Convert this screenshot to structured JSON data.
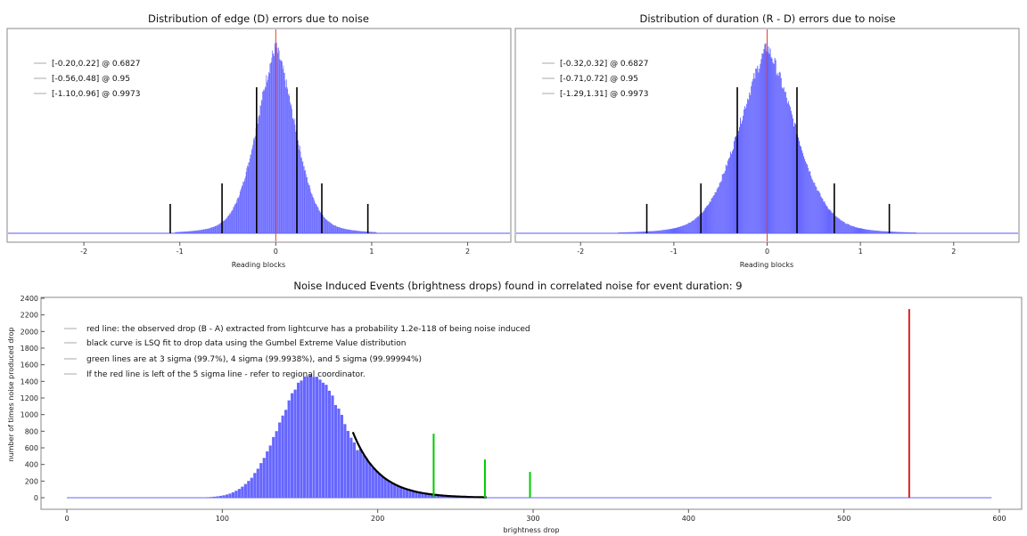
{
  "chart_data": [
    {
      "type": "bar",
      "title": "Distribution of edge (D) errors due to noise",
      "xlabel": "Reading blocks",
      "ylabel": "",
      "xlim": [
        -2.8,
        2.45
      ],
      "x_ticks": [
        -2,
        -1,
        0,
        1,
        2
      ],
      "y_ticks_shown": false,
      "distribution": {
        "shape": "gaussian",
        "center": 0.0,
        "sigma": 0.21,
        "tail_scale": 0.26
      },
      "vertical_markers": [
        {
          "x": 0.0,
          "color": "#e04040",
          "role": "observed zero"
        },
        {
          "x": -0.2,
          "level": 1
        },
        {
          "x": 0.22,
          "level": 1
        },
        {
          "x": -0.56,
          "level": 2
        },
        {
          "x": 0.48,
          "level": 2
        },
        {
          "x": -1.1,
          "level": 3
        },
        {
          "x": 0.96,
          "level": 3
        }
      ],
      "legend": [
        "[-0.20,0.22] @ 0.6827",
        "[-0.56,0.48] @ 0.95",
        "[-1.10,0.96] @ 0.9973"
      ],
      "legend_position": "top-left",
      "series_color": "#6666ff"
    },
    {
      "type": "bar",
      "title": "Distribution of duration (R - D) errors due to noise",
      "xlabel": "Reading blocks",
      "ylabel": "",
      "xlim": [
        -2.7,
        2.7
      ],
      "x_ticks": [
        -2,
        -1,
        0,
        1,
        2
      ],
      "y_ticks_shown": false,
      "distribution": {
        "shape": "gaussian",
        "center": 0.0,
        "sigma": 0.32,
        "tail_scale": 0.36
      },
      "vertical_markers": [
        {
          "x": 0.0,
          "color": "#e04040",
          "role": "observed zero"
        },
        {
          "x": -0.32,
          "level": 1
        },
        {
          "x": 0.32,
          "level": 1
        },
        {
          "x": -0.71,
          "level": 2
        },
        {
          "x": 0.72,
          "level": 2
        },
        {
          "x": -1.29,
          "level": 3
        },
        {
          "x": 1.31,
          "level": 3
        }
      ],
      "legend": [
        "[-0.32,0.32] @ 0.6827",
        "[-0.71,0.72] @ 0.95",
        "[-1.29,1.31] @ 0.9973"
      ],
      "legend_position": "top-left",
      "series_color": "#6666ff"
    },
    {
      "type": "bar",
      "title": "Noise Induced Events (brightness drops) found in correlated noise for event duration: 9",
      "xlabel": "brightness drop",
      "ylabel": "number of times noise produced drop",
      "xlim": [
        -15,
        610
      ],
      "ylim": [
        -100,
        2400
      ],
      "x_ticks": [
        0,
        100,
        200,
        300,
        400,
        500,
        600
      ],
      "y_ticks": [
        0,
        200,
        400,
        600,
        800,
        1000,
        1200,
        1400,
        1600,
        1800,
        2000,
        2200,
        2400
      ],
      "histogram": {
        "range": [
          80,
          272
        ],
        "bin_width": 2,
        "peak_x": 157,
        "peak_y": 1480,
        "left_sigma": 20,
        "right_sigma": 22
      },
      "gumbel_fit": {
        "x_start": 184,
        "x_end": 270,
        "y_start": 790
      },
      "vertical_markers": [
        {
          "x": 236,
          "y": 770,
          "color": "#00cc00",
          "label": "3 sigma"
        },
        {
          "x": 269,
          "y": 460,
          "color": "#00cc00",
          "label": "4 sigma"
        },
        {
          "x": 298,
          "y": 310,
          "color": "#00cc00",
          "label": "5 sigma"
        },
        {
          "x": 542,
          "y": 2270,
          "color": "#dd2222",
          "label": "observed drop"
        }
      ],
      "legend": [
        "red line: the observed drop (B - A) extracted from lightcurve has a probability 1.2e-118 of being noise induced",
        "black curve is LSQ fit to drop data using the Gumbel Extreme Value distribution",
        "green lines are at 3 sigma (99.7%), 4 sigma (99.9938%), and 5 sigma (99.99994%)",
        "If the red line is left of the 5 sigma line - refer to regional coordinator."
      ],
      "legend_position": "top-left",
      "series_color": "#6666ff"
    }
  ]
}
